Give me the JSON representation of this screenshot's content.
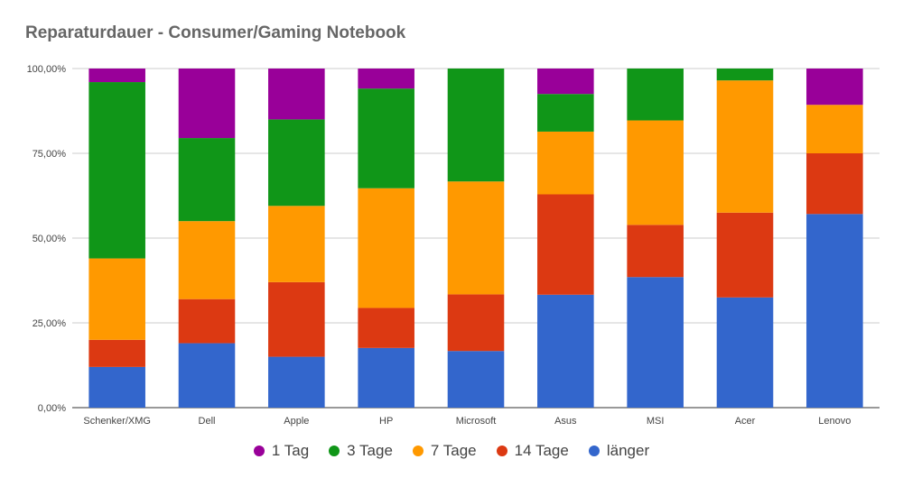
{
  "chart_data": {
    "type": "bar",
    "stacked": true,
    "percent": true,
    "title": "Reparaturdauer - Consumer/Gaming Notebook",
    "xlabel": "",
    "ylabel": "",
    "ylim": [
      0,
      100
    ],
    "yticks": [
      "0,00%",
      "25,00%",
      "50,00%",
      "75,00%",
      "100,00%"
    ],
    "ytick_values": [
      0,
      25,
      50,
      75,
      100
    ],
    "grid": true,
    "legend_position": "bottom",
    "categories": [
      "Schenker/XMG",
      "Dell",
      "Apple",
      "HP",
      "Microsoft",
      "Asus",
      "MSI",
      "Acer",
      "Lenovo"
    ],
    "series": [
      {
        "name": "länger",
        "color": "#3366cc",
        "values": [
          12,
          19,
          15,
          17.6,
          16.7,
          33.3,
          38.5,
          32.5,
          57.1
        ]
      },
      {
        "name": "14 Tage",
        "color": "#dc3912",
        "values": [
          8,
          13,
          22,
          11.8,
          16.7,
          29.6,
          15.4,
          25,
          17.9
        ]
      },
      {
        "name": "7 Tage",
        "color": "#ff9900",
        "values": [
          24,
          23,
          22.5,
          35.3,
          33.3,
          18.5,
          30.8,
          39,
          14.3
        ]
      },
      {
        "name": "3 Tage",
        "color": "#109618",
        "values": [
          52,
          24.5,
          25.5,
          29.4,
          33.3,
          11.1,
          15.3,
          3.5,
          0
        ]
      },
      {
        "name": "1 Tag",
        "color": "#990099",
        "values": [
          4,
          20.5,
          15,
          5.9,
          0,
          7.5,
          0,
          0,
          10.7
        ]
      }
    ]
  }
}
